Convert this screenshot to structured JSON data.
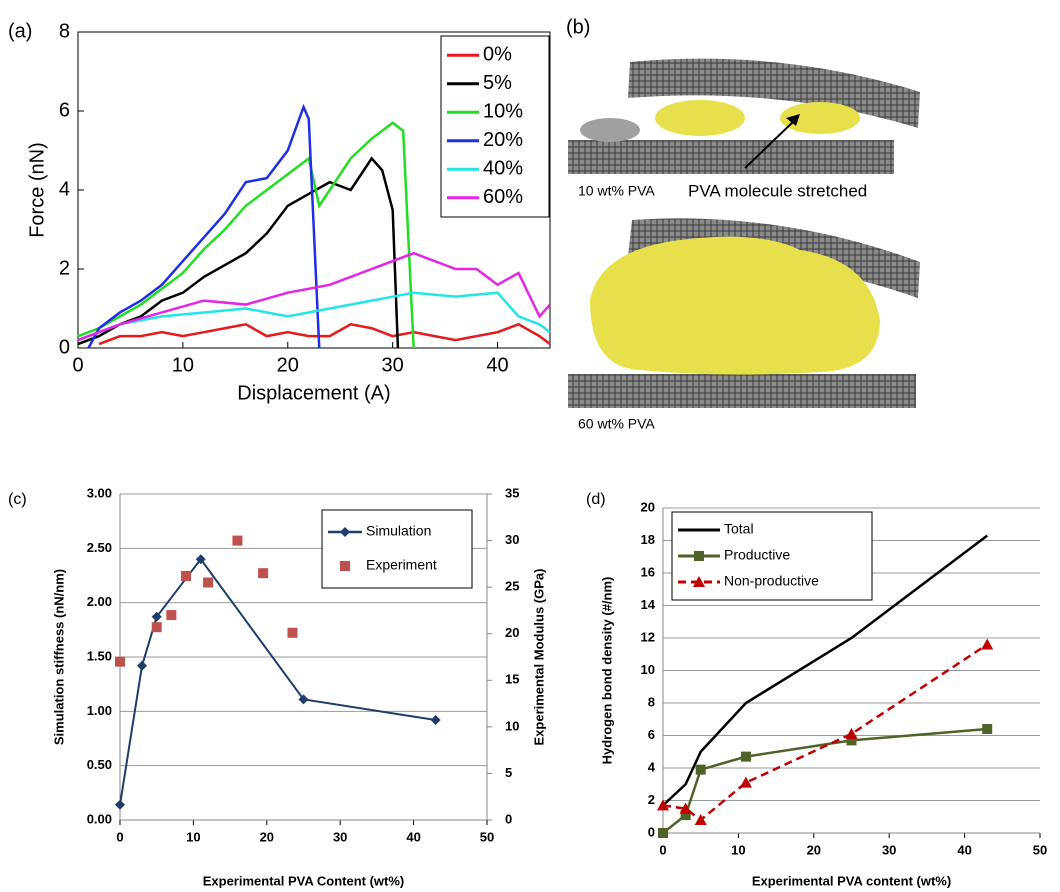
{
  "chart_data": [
    {
      "type": "line",
      "label": "(a)",
      "xlabel": "Displacement (A)",
      "ylabel": "Force (nN)",
      "xlim": [
        0,
        45
      ],
      "ylim": [
        0,
        8
      ],
      "xticks": [
        0,
        10,
        20,
        30,
        40
      ],
      "yticks": [
        0,
        2,
        4,
        6,
        8
      ],
      "grid": false,
      "legend": "upper right",
      "series": [
        {
          "name": "0%",
          "color": "#e41a1c",
          "x": [
            2,
            4,
            6,
            8,
            10,
            12,
            14,
            16,
            18,
            20,
            22,
            24,
            26,
            28,
            30,
            32,
            34,
            36,
            38,
            40,
            42,
            44,
            45
          ],
          "values": [
            0.1,
            0.3,
            0.3,
            0.4,
            0.3,
            0.4,
            0.5,
            0.6,
            0.3,
            0.4,
            0.3,
            0.3,
            0.6,
            0.5,
            0.3,
            0.4,
            0.3,
            0.2,
            0.3,
            0.4,
            0.6,
            0.3,
            0.1
          ]
        },
        {
          "name": "5%",
          "color": "#000000",
          "x": [
            0,
            2,
            4,
            6,
            8,
            10,
            12,
            14,
            16,
            18,
            20,
            22,
            24,
            26,
            28,
            29,
            30,
            30.5
          ],
          "values": [
            0.1,
            0.3,
            0.6,
            0.8,
            1.2,
            1.4,
            1.8,
            2.1,
            2.4,
            2.9,
            3.6,
            3.9,
            4.2,
            4.0,
            4.8,
            4.5,
            3.5,
            0
          ]
        },
        {
          "name": "10%",
          "color": "#22dd22",
          "x": [
            0,
            2,
            4,
            6,
            8,
            10,
            12,
            14,
            16,
            18,
            20,
            22,
            23,
            24,
            26,
            28,
            30,
            31,
            32
          ],
          "values": [
            0.3,
            0.5,
            0.8,
            1.1,
            1.5,
            1.9,
            2.5,
            3.0,
            3.6,
            4.0,
            4.4,
            4.8,
            3.6,
            4.0,
            4.8,
            5.3,
            5.7,
            5.5,
            0
          ]
        },
        {
          "name": "20%",
          "color": "#1f2ee6",
          "x": [
            1,
            2,
            4,
            6,
            8,
            10,
            12,
            14,
            16,
            18,
            20,
            21.5,
            22,
            23
          ],
          "values": [
            0,
            0.5,
            0.9,
            1.2,
            1.6,
            2.2,
            2.8,
            3.4,
            4.2,
            4.3,
            5.0,
            6.1,
            5.8,
            0
          ]
        },
        {
          "name": "40%",
          "color": "#22e5e5",
          "x": [
            0,
            4,
            8,
            12,
            16,
            20,
            24,
            28,
            32,
            36,
            40,
            42,
            44,
            45
          ],
          "values": [
            0.2,
            0.6,
            0.8,
            0.9,
            1.0,
            0.8,
            1.0,
            1.2,
            1.4,
            1.3,
            1.4,
            0.8,
            0.6,
            0.4
          ]
        },
        {
          "name": "60%",
          "color": "#e524e5",
          "x": [
            0,
            4,
            8,
            12,
            16,
            20,
            24,
            28,
            32,
            36,
            38,
            40,
            42,
            44,
            45
          ],
          "values": [
            0.2,
            0.6,
            0.9,
            1.2,
            1.1,
            1.4,
            1.6,
            2.0,
            2.4,
            2.0,
            2.0,
            1.6,
            1.9,
            0.8,
            1.1
          ]
        }
      ]
    },
    {
      "type": "line",
      "label": "(c)",
      "xlabel": "Experimental PVA Content (wt%)",
      "ylabel": "Simulation stiffness (nN/nm)",
      "y2label": "Experimental Modulus (GPa)",
      "xlim": [
        0,
        50
      ],
      "ylim": [
        0,
        3
      ],
      "y2lim": [
        0,
        35
      ],
      "xticks": [
        0,
        10,
        20,
        30,
        40,
        50
      ],
      "yticks": [
        {
          "value": 0,
          "label": "0.00"
        },
        {
          "value": 0.5,
          "label": "0.50"
        },
        {
          "value": 1,
          "label": "1.00"
        },
        {
          "value": 1.5,
          "label": "1.50"
        },
        {
          "value": 2,
          "label": "2.00"
        },
        {
          "value": 2.5,
          "label": "2.50"
        },
        {
          "value": 3,
          "label": "3.00"
        }
      ],
      "y2ticks": [
        0,
        5,
        10,
        15,
        20,
        25,
        30,
        35
      ],
      "grid": true,
      "legend": "upper right",
      "series": [
        {
          "name": "Simulation",
          "color": "#1f3d6b",
          "marker": "diamond",
          "line": true,
          "x": [
            0,
            3,
            5,
            11,
            25,
            43
          ],
          "values": [
            0.14,
            1.42,
            1.87,
            2.4,
            1.11,
            0.92
          ]
        },
        {
          "name": "Experiment",
          "color": "#c0504d",
          "marker": "square",
          "line": false,
          "axis": "y2",
          "x": [
            0,
            5,
            7,
            9,
            12,
            16,
            19.5,
            23.5
          ],
          "values": [
            17,
            20.7,
            22,
            26.2,
            25.5,
            30,
            26.5,
            20.1
          ]
        }
      ]
    },
    {
      "type": "line",
      "label": "(d)",
      "xlabel": "Experimental PVA content (wt%)",
      "ylabel": "Hydrogen bond density (#/nm)",
      "xlim": [
        0,
        50
      ],
      "ylim": [
        0,
        20
      ],
      "xticks": [
        0,
        10,
        20,
        30,
        40,
        50
      ],
      "yticks": [
        0,
        2,
        4,
        6,
        8,
        10,
        12,
        14,
        16,
        18,
        20
      ],
      "grid": true,
      "legend": "upper left",
      "series": [
        {
          "name": "Total",
          "color": "#000000",
          "line": true,
          "x": [
            0,
            3,
            5,
            11,
            25,
            43
          ],
          "values": [
            1.7,
            3,
            5,
            8,
            12,
            18.3
          ]
        },
        {
          "name": "Productive",
          "color": "#4f6228",
          "marker": "square",
          "line": true,
          "x": [
            0,
            3,
            5,
            11,
            25,
            43
          ],
          "values": [
            0,
            1.1,
            3.9,
            4.7,
            5.7,
            6.4
          ]
        },
        {
          "name": "Non-productive",
          "color": "#c00000",
          "marker": "triangle",
          "line": true,
          "dash": true,
          "x": [
            0,
            3,
            5,
            11,
            25,
            43
          ],
          "values": [
            1.7,
            1.5,
            0.8,
            3.1,
            6.1,
            11.6
          ]
        }
      ]
    }
  ],
  "panel_b": {
    "label": "(b)",
    "top_caption": "10 wt% PVA",
    "annotation": "PVA molecule stretched",
    "bottom_caption": "60 wt% PVA"
  }
}
